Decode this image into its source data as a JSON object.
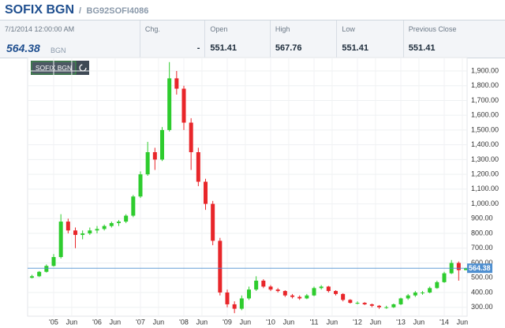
{
  "header": {
    "title": "SOFIX BGN",
    "separator": "/",
    "code": "BG92SOFI4086"
  },
  "quote": {
    "date": "7/1/2014 12:00:00 AM",
    "price": "564.38",
    "currency": "BGN",
    "fields": [
      {
        "label": "Chg.",
        "value": "-"
      },
      {
        "label": "Open",
        "value": "551.41"
      },
      {
        "label": "High",
        "value": "567.76"
      },
      {
        "label": "Low",
        "value": "551.41"
      },
      {
        "label": "Previous Close",
        "value": "551.41"
      }
    ]
  },
  "chart_data": {
    "type": "candlestick",
    "series_name": "SOFIX BGN",
    "up_color": "#2ecc2e",
    "down_color": "#e8262a",
    "last_color": "#4f8fd0",
    "grid": true,
    "last_value": 564.38,
    "ylim": [
      245,
      1980
    ],
    "yticks": [
      {
        "value": 300,
        "label": "300.00"
      },
      {
        "value": 400,
        "label": "400.00"
      },
      {
        "value": 500,
        "label": "500.00"
      },
      {
        "value": 600,
        "label": "600.00"
      },
      {
        "value": 700,
        "label": "700.00"
      },
      {
        "value": 800,
        "label": "800.00"
      },
      {
        "value": 900,
        "label": "900.00"
      },
      {
        "value": 1000,
        "label": "1,000.00"
      },
      {
        "value": 1100,
        "label": "1,100.00"
      },
      {
        "value": 1200,
        "label": "1,200.00"
      },
      {
        "value": 1300,
        "label": "1,300.00"
      },
      {
        "value": 1400,
        "label": "1,400.00"
      },
      {
        "value": 1500,
        "label": "1,500.00"
      },
      {
        "value": 1600,
        "label": "1,600.00"
      },
      {
        "value": 1700,
        "label": "1,700.00"
      },
      {
        "value": 1800,
        "label": "1,800.00"
      },
      {
        "value": 1900,
        "label": "1,900.00"
      }
    ],
    "xticks": [
      {
        "value": "2005-01",
        "label": "'05"
      },
      {
        "value": "2005-06",
        "label": "Jun"
      },
      {
        "value": "2006-01",
        "label": "'06"
      },
      {
        "value": "2006-06",
        "label": "Jun"
      },
      {
        "value": "2007-01",
        "label": "'07"
      },
      {
        "value": "2007-06",
        "label": "Jun"
      },
      {
        "value": "2008-01",
        "label": "'08"
      },
      {
        "value": "2008-06",
        "label": "Jun"
      },
      {
        "value": "2009-01",
        "label": "'09"
      },
      {
        "value": "2009-06",
        "label": "Jun"
      },
      {
        "value": "2010-01",
        "label": "'10"
      },
      {
        "value": "2010-06",
        "label": "Jun"
      },
      {
        "value": "2011-01",
        "label": "'11"
      },
      {
        "value": "2011-06",
        "label": "Jun"
      },
      {
        "value": "2012-01",
        "label": "'12"
      },
      {
        "value": "2012-06",
        "label": "Jun"
      },
      {
        "value": "2013-01",
        "label": "'13"
      },
      {
        "value": "2013-06",
        "label": "Jun"
      },
      {
        "value": "2014-01",
        "label": "'14"
      },
      {
        "value": "2014-06",
        "label": "Jun"
      }
    ],
    "x": [
      "2004-07",
      "2004-09",
      "2004-11",
      "2005-01",
      "2005-03",
      "2005-05",
      "2005-07",
      "2005-09",
      "2005-11",
      "2006-01",
      "2006-03",
      "2006-05",
      "2006-07",
      "2006-09",
      "2006-11",
      "2007-01",
      "2007-03",
      "2007-05",
      "2007-07",
      "2007-09",
      "2007-11",
      "2008-01",
      "2008-03",
      "2008-05",
      "2008-07",
      "2008-09",
      "2008-11",
      "2009-01",
      "2009-03",
      "2009-05",
      "2009-07",
      "2009-09",
      "2009-11",
      "2010-01",
      "2010-03",
      "2010-05",
      "2010-07",
      "2010-09",
      "2010-11",
      "2011-01",
      "2011-03",
      "2011-05",
      "2011-07",
      "2011-09",
      "2011-11",
      "2012-01",
      "2012-03",
      "2012-05",
      "2012-07",
      "2012-09",
      "2012-11",
      "2013-01",
      "2013-03",
      "2013-05",
      "2013-07",
      "2013-09",
      "2013-11",
      "2014-01",
      "2014-03",
      "2014-05",
      "2014-07"
    ],
    "candles": [
      [
        500,
        520,
        495,
        510
      ],
      [
        510,
        545,
        505,
        540
      ],
      [
        540,
        590,
        535,
        580
      ],
      [
        580,
        660,
        575,
        640
      ],
      [
        640,
        930,
        630,
        880
      ],
      [
        880,
        900,
        800,
        820
      ],
      [
        820,
        840,
        700,
        790
      ],
      [
        790,
        820,
        760,
        800
      ],
      [
        800,
        840,
        790,
        820
      ],
      [
        820,
        850,
        800,
        830
      ],
      [
        830,
        860,
        820,
        850
      ],
      [
        850,
        880,
        840,
        870
      ],
      [
        870,
        890,
        850,
        880
      ],
      [
        880,
        930,
        870,
        920
      ],
      [
        920,
        1060,
        910,
        1050
      ],
      [
        1050,
        1220,
        1040,
        1200
      ],
      [
        1200,
        1420,
        1190,
        1350
      ],
      [
        1350,
        1380,
        1230,
        1300
      ],
      [
        1300,
        1520,
        1290,
        1500
      ],
      [
        1500,
        1960,
        1490,
        1850
      ],
      [
        1850,
        1900,
        1740,
        1780
      ],
      [
        1780,
        1800,
        1500,
        1550
      ],
      [
        1550,
        1580,
        1230,
        1350
      ],
      [
        1350,
        1380,
        1120,
        1150
      ],
      [
        1150,
        1170,
        960,
        1000
      ],
      [
        1000,
        1020,
        720,
        750
      ],
      [
        750,
        770,
        380,
        400
      ],
      [
        400,
        420,
        300,
        320
      ],
      [
        320,
        340,
        260,
        290
      ],
      [
        290,
        380,
        280,
        360
      ],
      [
        360,
        440,
        350,
        420
      ],
      [
        420,
        510,
        410,
        480
      ],
      [
        480,
        490,
        430,
        440
      ],
      [
        440,
        450,
        410,
        420
      ],
      [
        420,
        430,
        400,
        410
      ],
      [
        410,
        415,
        370,
        380
      ],
      [
        380,
        390,
        360,
        370
      ],
      [
        370,
        380,
        350,
        360
      ],
      [
        360,
        390,
        355,
        380
      ],
      [
        380,
        440,
        375,
        430
      ],
      [
        430,
        450,
        420,
        440
      ],
      [
        440,
        445,
        400,
        410
      ],
      [
        410,
        415,
        380,
        390
      ],
      [
        390,
        395,
        340,
        350
      ],
      [
        350,
        355,
        325,
        330
      ],
      [
        330,
        340,
        320,
        330
      ],
      [
        330,
        335,
        315,
        320
      ],
      [
        320,
        325,
        300,
        310
      ],
      [
        310,
        315,
        290,
        300
      ],
      [
        300,
        310,
        290,
        300
      ],
      [
        300,
        325,
        295,
        320
      ],
      [
        320,
        365,
        315,
        360
      ],
      [
        360,
        390,
        350,
        380
      ],
      [
        380,
        410,
        370,
        400
      ],
      [
        400,
        410,
        385,
        400
      ],
      [
        400,
        440,
        395,
        430
      ],
      [
        430,
        480,
        425,
        470
      ],
      [
        470,
        540,
        465,
        530
      ],
      [
        530,
        620,
        525,
        600
      ],
      [
        600,
        610,
        480,
        551.41
      ],
      [
        551.41,
        567.76,
        551.41,
        564.38
      ]
    ]
  }
}
